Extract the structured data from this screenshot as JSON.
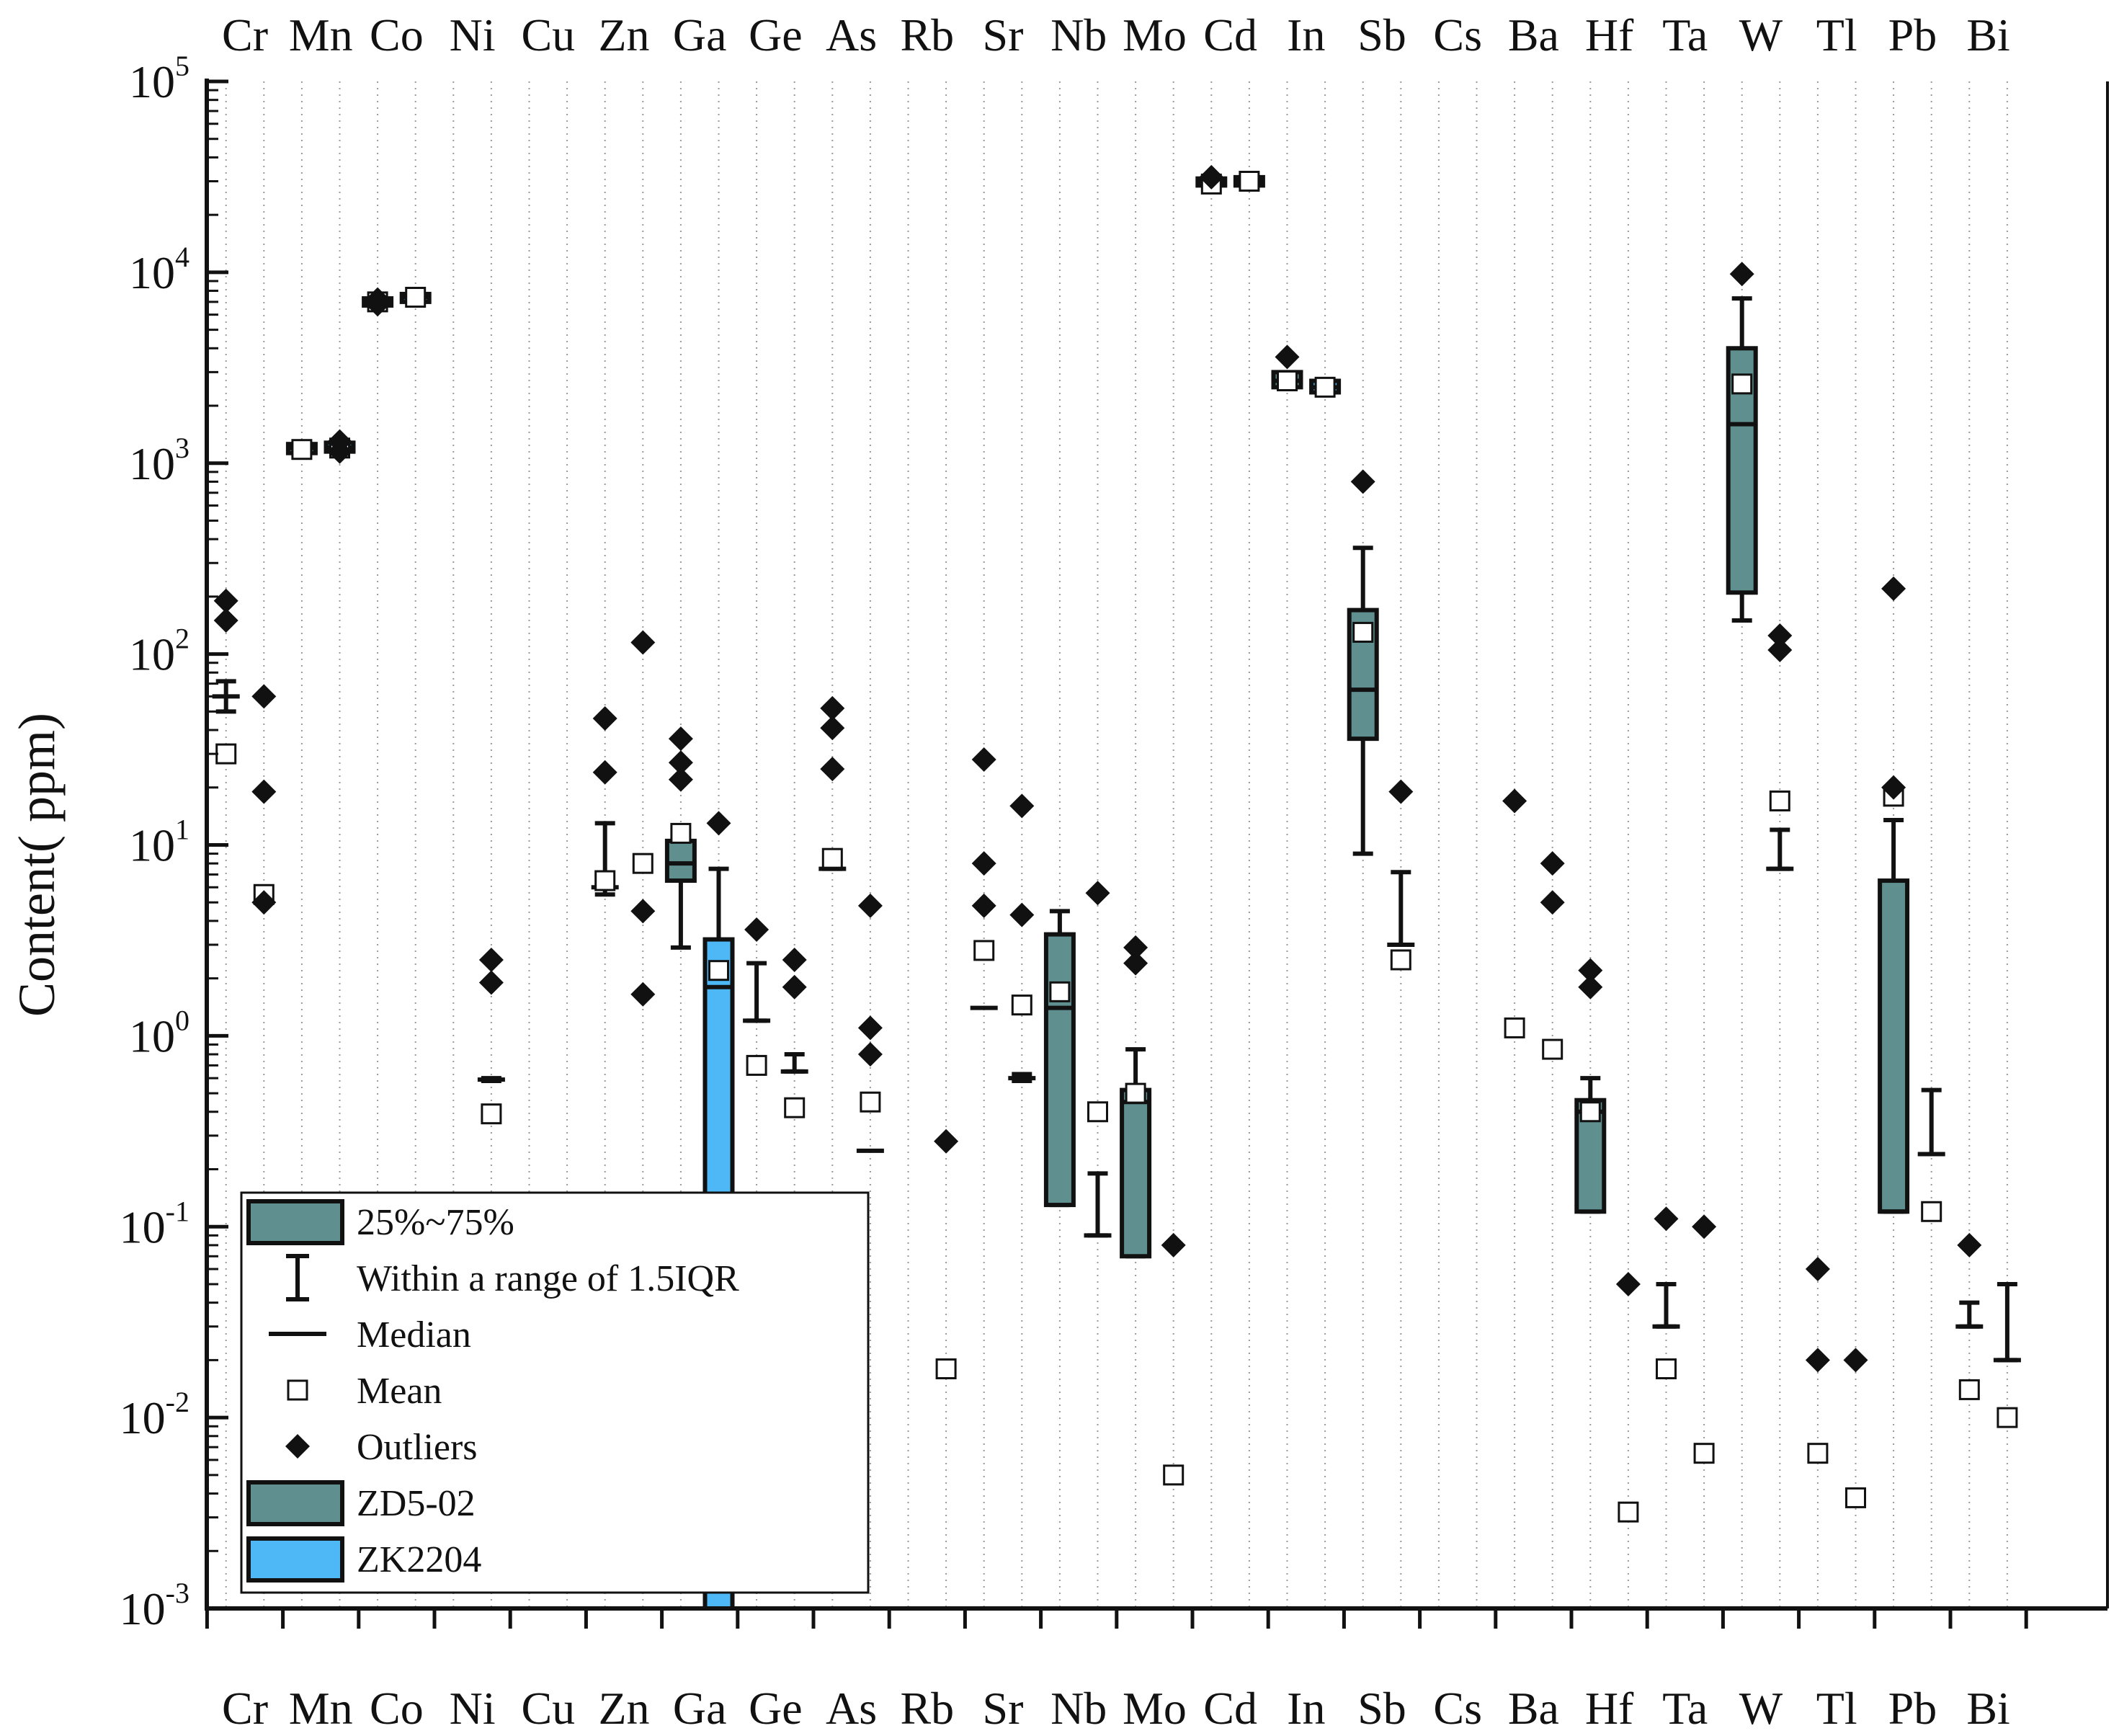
{
  "chart_data": {
    "type": "boxplot",
    "ylabel": "Content(   ppm)",
    "yscale": "log",
    "ylim": [
      0.001,
      100000
    ],
    "yticks": [
      {
        "base": "10",
        "exp": "5"
      },
      {
        "base": "10",
        "exp": "4"
      },
      {
        "base": "10",
        "exp": "3"
      },
      {
        "base": "10",
        "exp": "2"
      },
      {
        "base": "10",
        "exp": "1"
      },
      {
        "base": "10",
        "exp": "0"
      },
      {
        "base": "10",
        "exp": "-1"
      },
      {
        "base": "10",
        "exp": "-2"
      },
      {
        "base": "10",
        "exp": "-3"
      }
    ],
    "elements": [
      "Cr",
      "Mn",
      "Co",
      "Ni",
      "Cu",
      "Zn",
      "Ga",
      "Ge",
      "As",
      "Rb",
      "Sr",
      "Nb",
      "Mo",
      "Cd",
      "In",
      "Sb",
      "Cs",
      "Ba",
      "Hf",
      "Ta",
      "W",
      "Tl",
      "Pb",
      "Bi"
    ],
    "series": [
      {
        "name": "ZD5-02",
        "color": "#5f8f8e",
        "offset": -0.25
      },
      {
        "name": "ZK2204",
        "color": "#4db8f5",
        "offset": 0.25
      }
    ],
    "stats": [
      {
        "element": "Cr",
        "series": "ZD5-02",
        "whisker": [
          50,
          72
        ],
        "median": 60,
        "mean": 30,
        "outliers": [
          190,
          150
        ]
      },
      {
        "element": "Cr",
        "series": "ZK2204",
        "mean": 5.5,
        "outliers": [
          60,
          19,
          5
        ]
      },
      {
        "element": "Mn",
        "series": "ZD5-02",
        "q1": 1130,
        "q3": 1260,
        "median": 1200,
        "mean": 1180
      },
      {
        "element": "Mn",
        "series": "ZK2204",
        "q1": 1150,
        "q3": 1280,
        "median": 1210,
        "mean": 1200,
        "outliers": [
          1300,
          1150
        ]
      },
      {
        "element": "Co",
        "series": "ZD5-02",
        "q1": 6700,
        "q3": 7300,
        "median": 7000,
        "mean": 7000,
        "outliers": [
          7200,
          6800
        ]
      },
      {
        "element": "Co",
        "series": "ZK2204",
        "q1": 7000,
        "q3": 7700,
        "median": 7400,
        "mean": 7400
      },
      {
        "element": "Ni",
        "series": "ZK2204",
        "whisker": [
          0.58,
          0.6
        ],
        "median": 0.59,
        "mean": 0.39,
        "outliers": [
          2.5,
          1.9
        ]
      },
      {
        "element": "Zn",
        "series": "ZD5-02",
        "whisker": [
          5.5,
          13
        ],
        "median": 6,
        "mean": 6.5,
        "outliers": [
          46,
          24
        ]
      },
      {
        "element": "Zn",
        "series": "ZK2204",
        "mean": 8,
        "outliers": [
          115,
          4.5,
          1.65
        ]
      },
      {
        "element": "Ga",
        "series": "ZD5-02",
        "q1": 6.5,
        "q3": 10.5,
        "median": 8,
        "whisker": [
          2.9,
          10.5
        ],
        "mean": 11.5,
        "outliers": [
          36,
          27,
          22
        ]
      },
      {
        "element": "Ga",
        "series": "ZK2204",
        "q1": 0.001,
        "q3": 3.2,
        "median": 1.8,
        "whisker": [
          0.001,
          7.5
        ],
        "mean": 2.2,
        "outliers": [
          13
        ]
      },
      {
        "element": "Ge",
        "series": "ZD5-02",
        "whisker": [
          1.2,
          2.4
        ],
        "median": 1.2,
        "mean": 0.7,
        "outliers": [
          3.6
        ]
      },
      {
        "element": "Ge",
        "series": "ZK2204",
        "whisker": [
          0.65,
          0.8
        ],
        "median": 0.65,
        "mean": 0.42,
        "outliers": [
          2.5,
          1.8
        ]
      },
      {
        "element": "As",
        "series": "ZD5-02",
        "whisker": [
          7.5,
          8.5
        ],
        "median": 7.5,
        "mean": 8.5,
        "outliers": [
          52,
          41,
          25
        ]
      },
      {
        "element": "As",
        "series": "ZK2204",
        "median": 0.25,
        "mean": 0.45,
        "outliers": [
          4.8,
          1.1,
          0.8
        ]
      },
      {
        "element": "Rb",
        "series": "ZK2204",
        "mean": 0.018,
        "outliers": [
          0.28
        ]
      },
      {
        "element": "Sr",
        "series": "ZD5-02",
        "median": 1.4,
        "mean": 2.8,
        "outliers": [
          28,
          8,
          4.8
        ]
      },
      {
        "element": "Sr",
        "series": "ZK2204",
        "whisker": [
          0.58,
          0.63
        ],
        "median": 0.6,
        "mean": 1.45,
        "outliers": [
          16,
          4.3
        ]
      },
      {
        "element": "Nb",
        "series": "ZD5-02",
        "q1": 0.13,
        "q3": 3.4,
        "median": 1.4,
        "whisker": [
          0.13,
          4.5
        ],
        "mean": 1.7
      },
      {
        "element": "Nb",
        "series": "ZK2204",
        "whisker": [
          0.09,
          0.19
        ],
        "median": 0.09,
        "mean": 0.4,
        "outliers": [
          5.6
        ]
      },
      {
        "element": "Mo",
        "series": "ZD5-02",
        "q1": 0.07,
        "q3": 0.52,
        "median": 0.45,
        "whisker": [
          0.07,
          0.85
        ],
        "mean": 0.5,
        "outliers": [
          2.9,
          2.4
        ]
      },
      {
        "element": "Mo",
        "series": "ZK2204",
        "mean": 0.005,
        "outliers": [
          0.08
        ]
      },
      {
        "element": "Cd",
        "series": "ZD5-02",
        "q1": 28500,
        "q3": 31000,
        "median": 30000,
        "mean": 29000,
        "outliers": [
          31500
        ]
      },
      {
        "element": "Cd",
        "series": "ZK2204",
        "q1": 28500,
        "q3": 31500,
        "median": 30000,
        "mean": 30000
      },
      {
        "element": "In",
        "series": "ZD5-02",
        "q1": 2500,
        "q3": 3000,
        "median": 2700,
        "mean": 2700,
        "outliers": [
          3600
        ]
      },
      {
        "element": "In",
        "series": "ZK2204",
        "q1": 2350,
        "q3": 2700,
        "median": 2500,
        "mean": 2500
      },
      {
        "element": "Sb",
        "series": "ZD5-02",
        "q1": 36,
        "q3": 170,
        "median": 65,
        "whisker": [
          9,
          360
        ],
        "mean": 130,
        "outliers": [
          800
        ]
      },
      {
        "element": "Sb",
        "series": "ZK2204",
        "whisker": [
          3,
          7.2
        ],
        "median": 3,
        "mean": 2.5,
        "outliers": [
          19
        ]
      },
      {
        "element": "Ba",
        "series": "ZD5-02",
        "mean": 1.1,
        "outliers": [
          17
        ]
      },
      {
        "element": "Ba",
        "series": "ZK2204",
        "mean": 0.85,
        "outliers": [
          8,
          5
        ]
      },
      {
        "element": "Hf",
        "series": "ZD5-02",
        "q1": 0.12,
        "q3": 0.46,
        "median": 0.4,
        "whisker": [
          0.12,
          0.6
        ],
        "mean": 0.4,
        "outliers": [
          2.2,
          1.8
        ]
      },
      {
        "element": "Hf",
        "series": "ZK2204",
        "mean": 0.0032,
        "outliers": [
          0.05
        ]
      },
      {
        "element": "Ta",
        "series": "ZD5-02",
        "whisker": [
          0.03,
          0.05
        ],
        "median": 0.03,
        "mean": 0.018,
        "outliers": [
          0.11
        ]
      },
      {
        "element": "Ta",
        "series": "ZK2204",
        "mean": 0.0065,
        "outliers": [
          0.1
        ]
      },
      {
        "element": "W",
        "series": "ZD5-02",
        "q1": 210,
        "q3": 4000,
        "median": 1600,
        "whisker": [
          150,
          7300
        ],
        "mean": 2600,
        "outliers": [
          9800
        ]
      },
      {
        "element": "W",
        "series": "ZK2204",
        "whisker": [
          7.5,
          12
        ],
        "median": 7.5,
        "mean": 17,
        "outliers": [
          125,
          105
        ]
      },
      {
        "element": "Tl",
        "series": "ZD5-02",
        "mean": 0.0065,
        "outliers": [
          0.06,
          0.02
        ]
      },
      {
        "element": "Tl",
        "series": "ZK2204",
        "mean": 0.0038,
        "outliers": [
          0.02
        ]
      },
      {
        "element": "Pb",
        "series": "ZD5-02",
        "q1": 0.12,
        "q3": 6.5,
        "median": 0.12,
        "whisker": [
          0.12,
          13.5
        ],
        "mean": 18,
        "outliers": [
          220,
          20
        ]
      },
      {
        "element": "Pb",
        "series": "ZK2204",
        "whisker": [
          0.24,
          0.52
        ],
        "median": 0.24,
        "mean": 0.12
      },
      {
        "element": "Bi",
        "series": "ZD5-02",
        "whisker": [
          0.03,
          0.04
        ],
        "median": 0.03,
        "mean": 0.014,
        "outliers": [
          0.08
        ]
      },
      {
        "element": "Bi",
        "series": "ZK2204",
        "whisker": [
          0.02,
          0.05
        ],
        "median": 0.02,
        "mean": 0.01
      }
    ],
    "legend": {
      "position": "bottom-left",
      "items": [
        {
          "key": "box",
          "label": "25%~75%",
          "color": "#5f8f8e"
        },
        {
          "key": "whisker",
          "label": "Within a range of 1.5IQR"
        },
        {
          "key": "median",
          "label": "Median"
        },
        {
          "key": "mean",
          "label": "Mean"
        },
        {
          "key": "outlier",
          "label": "Outliers"
        },
        {
          "key": "series-a",
          "label": "ZD5-02",
          "color": "#5f8f8e"
        },
        {
          "key": "series-b",
          "label": "ZK2204",
          "color": "#4db8f5"
        }
      ]
    }
  }
}
